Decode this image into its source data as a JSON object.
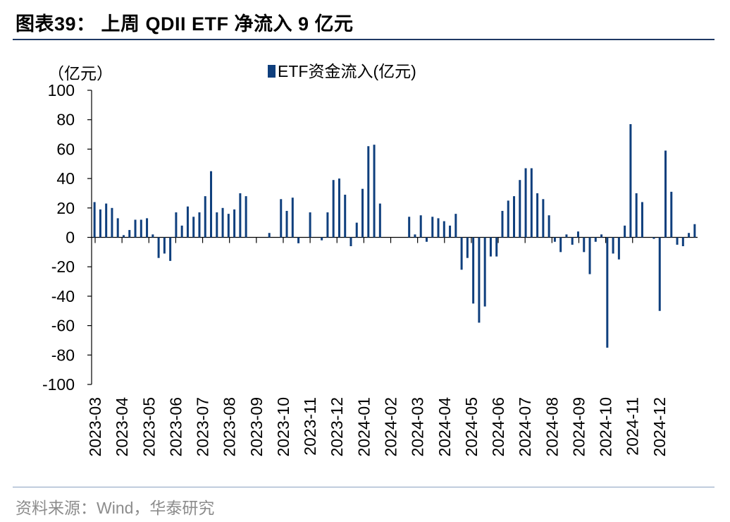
{
  "title": "图表39：  上周 QDII ETF 净流入 9 亿元",
  "source": "资料来源：Wind，华泰研究",
  "colors": {
    "bar": "#0f3f7d",
    "rule": "#1f3864",
    "source": "#8c8c8c"
  },
  "chart_data": {
    "type": "bar",
    "title": "上周 QDII ETF 净流入 9 亿元",
    "ylabel": "（亿元）",
    "xlabel": "",
    "ylim": [
      -100,
      100
    ],
    "yticks": [
      100,
      80,
      60,
      40,
      20,
      0,
      -20,
      -40,
      -60,
      -80,
      -100
    ],
    "x_tick_labels": [
      "2023-03",
      "2023-04",
      "2023-05",
      "2023-06",
      "2023-07",
      "2023-08",
      "2023-09",
      "2023-10",
      "2023-11",
      "2023-12",
      "2024-01",
      "2024-02",
      "2024-03",
      "2024-04",
      "2024-05",
      "2024-06",
      "2024-07",
      "2024-08",
      "2024-09",
      "2024-10",
      "2024-11",
      "2024-12"
    ],
    "legend": {
      "label": "ETF资金流入(亿元)",
      "position": "top-center"
    },
    "series": [
      {
        "name": "ETF资金流入(亿元)",
        "values": [
          24,
          19,
          23,
          20,
          13,
          1.5,
          5,
          12,
          12,
          13,
          2,
          -14,
          -11,
          -16,
          17,
          8,
          21,
          14,
          17,
          28,
          45,
          17,
          20,
          16,
          19,
          30,
          28,
          0,
          0,
          0,
          3,
          0,
          26,
          18,
          27,
          -4,
          0,
          17,
          0,
          -2,
          17,
          39,
          40,
          29,
          -6,
          10,
          33,
          62,
          63,
          23,
          0,
          0,
          0,
          0,
          14,
          2,
          15,
          -3,
          14,
          13,
          11,
          8,
          16,
          -22,
          -14,
          -45,
          -58,
          -47,
          -13,
          -13,
          18,
          25,
          28,
          39,
          47,
          47,
          30,
          26,
          15,
          -3,
          -10,
          2,
          -5,
          4,
          -10,
          -25,
          -3,
          2,
          -75,
          -11,
          -15,
          8,
          77,
          30,
          24,
          0,
          -1,
          -50,
          59,
          31,
          -5,
          -6,
          3,
          9
        ]
      }
    ]
  }
}
